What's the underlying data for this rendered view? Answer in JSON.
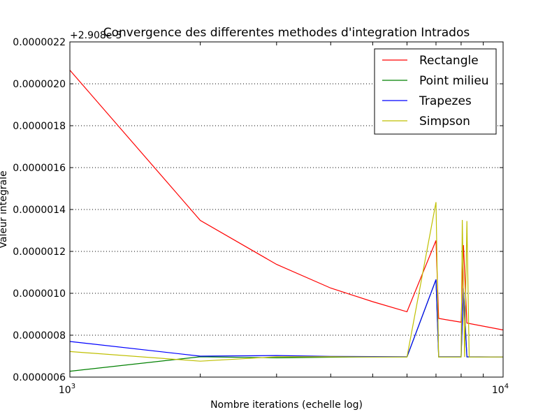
{
  "chart_data": {
    "type": "line",
    "title": "Convergence des differentes methodes d'integration Intrados",
    "xlabel": "Nombre iterations (echelle log)",
    "ylabel": "Valeur integrale",
    "offset_label": "+2.908e-3",
    "x_scale": "log",
    "xlim": [
      1000,
      10000
    ],
    "ylim": [
      6e-07,
      2.2e-06
    ],
    "x_ticks": [
      {
        "value": 1000,
        "base": "10",
        "exp": "3"
      },
      {
        "value": 10000,
        "base": "10",
        "exp": "4"
      }
    ],
    "y_ticks": [
      {
        "value": 6e-07,
        "label": "0.0000006"
      },
      {
        "value": 8e-07,
        "label": "0.0000008"
      },
      {
        "value": 1e-06,
        "label": "0.0000010"
      },
      {
        "value": 1.2e-06,
        "label": "0.0000012"
      },
      {
        "value": 1.4e-06,
        "label": "0.0000014"
      },
      {
        "value": 1.6e-06,
        "label": "0.0000016"
      },
      {
        "value": 1.8e-06,
        "label": "0.0000018"
      },
      {
        "value": 2e-06,
        "label": "0.0000020"
      },
      {
        "value": 2.2e-06,
        "label": "0.0000022"
      }
    ],
    "grid": "horizontal-dotted",
    "legend_position": "top-right",
    "series": [
      {
        "name": "Rectangle",
        "color": "#ff0000",
        "points": [
          [
            1000,
            2.065e-06
          ],
          [
            2000,
            1.348e-06
          ],
          [
            3000,
            1.138e-06
          ],
          [
            4000,
            1.025e-06
          ],
          [
            5000,
            9.6e-07
          ],
          [
            6000,
            9.12e-07
          ],
          [
            7000,
            1.252e-06
          ],
          [
            7100,
            8.8e-07
          ],
          [
            8000,
            8.62e-07
          ],
          [
            8100,
            1.23e-06
          ],
          [
            8250,
            8.58e-07
          ],
          [
            10000,
            8.25e-07
          ]
        ]
      },
      {
        "name": "Point milieu",
        "color": "#008000",
        "points": [
          [
            1000,
            6.28e-07
          ],
          [
            2000,
            6.97e-07
          ],
          [
            3000,
            6.92e-07
          ],
          [
            4000,
            6.95e-07
          ],
          [
            5000,
            6.96e-07
          ],
          [
            6000,
            6.96e-07
          ],
          [
            7000,
            1.065e-06
          ],
          [
            7100,
            6.96e-07
          ],
          [
            8000,
            6.96e-07
          ],
          [
            8100,
            1.02e-06
          ],
          [
            8250,
            6.96e-07
          ],
          [
            10000,
            6.96e-07
          ]
        ]
      },
      {
        "name": "Trapezes",
        "color": "#0000ff",
        "points": [
          [
            1000,
            7.7e-07
          ],
          [
            2000,
            7e-07
          ],
          [
            3000,
            7.03e-07
          ],
          [
            4000,
            6.99e-07
          ],
          [
            5000,
            6.98e-07
          ],
          [
            6000,
            6.97e-07
          ],
          [
            7000,
            1.066e-06
          ],
          [
            7100,
            6.97e-07
          ],
          [
            8000,
            6.97e-07
          ],
          [
            8100,
            1.025e-06
          ],
          [
            8250,
            6.97e-07
          ],
          [
            10000,
            6.96e-07
          ]
        ]
      },
      {
        "name": "Simpson",
        "color": "#bfbf00",
        "points": [
          [
            1000,
            7.22e-07
          ],
          [
            2000,
            6.76e-07
          ],
          [
            3000,
            6.97e-07
          ],
          [
            4000,
            6.97e-07
          ],
          [
            5000,
            6.96e-07
          ],
          [
            6000,
            6.96e-07
          ],
          [
            7000,
            1.435e-06
          ],
          [
            7100,
            6.96e-07
          ],
          [
            8000,
            6.96e-07
          ],
          [
            8050,
            1.35e-06
          ],
          [
            8150,
            6.96e-07
          ],
          [
            8250,
            1.345e-06
          ],
          [
            8350,
            6.96e-07
          ],
          [
            10000,
            6.96e-07
          ]
        ]
      }
    ]
  }
}
